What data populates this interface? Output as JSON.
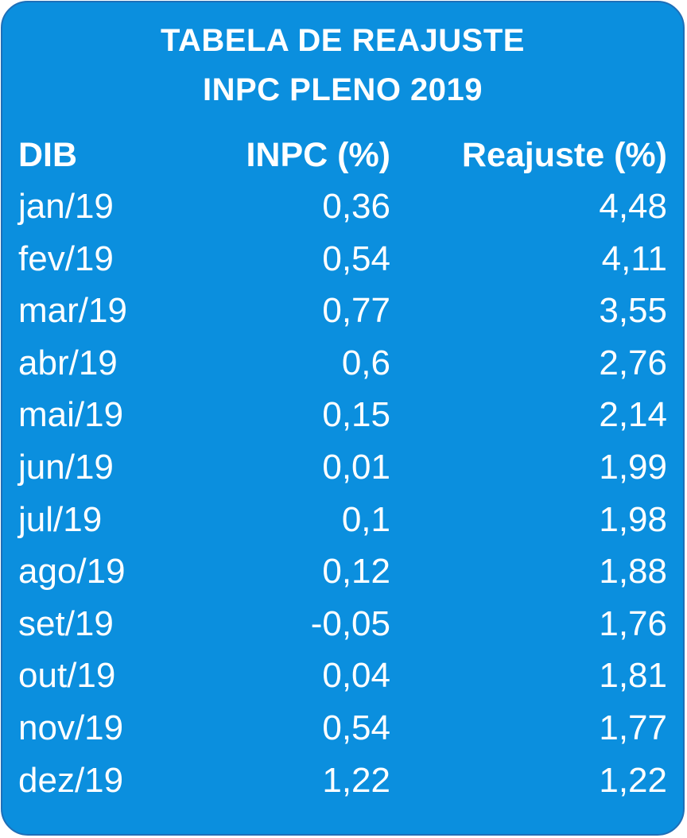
{
  "title": {
    "line1": "TABELA DE REAJUSTE",
    "line2": "INPC PLENO 2019"
  },
  "columns": {
    "dib": "DIB",
    "inpc": "INPC (%)",
    "reajuste": "Reajuste (%)"
  },
  "rows": [
    {
      "dib": "jan/19",
      "inpc": "0,36",
      "reajuste": "4,48"
    },
    {
      "dib": "fev/19",
      "inpc": "0,54",
      "reajuste": "4,11"
    },
    {
      "dib": "mar/19",
      "inpc": "0,77",
      "reajuste": "3,55"
    },
    {
      "dib": "abr/19",
      "inpc": "0,6",
      "reajuste": "2,76"
    },
    {
      "dib": "mai/19",
      "inpc": "0,15",
      "reajuste": "2,14"
    },
    {
      "dib": "jun/19",
      "inpc": "0,01",
      "reajuste": "1,99"
    },
    {
      "dib": "jul/19",
      "inpc": "0,1",
      "reajuste": "1,98"
    },
    {
      "dib": "ago/19",
      "inpc": "0,12",
      "reajuste": "1,88"
    },
    {
      "dib": "set/19",
      "inpc": "-0,05",
      "reajuste": "1,76"
    },
    {
      "dib": "out/19",
      "inpc": "0,04",
      "reajuste": "1,81"
    },
    {
      "dib": "nov/19",
      "inpc": "0,54",
      "reajuste": "1,77"
    },
    {
      "dib": "dez/19",
      "inpc": "1,22",
      "reajuste": "1,22"
    }
  ],
  "colors": {
    "background": "#0b8fde",
    "border": "#1f6fb8",
    "text": "#ffffff"
  }
}
